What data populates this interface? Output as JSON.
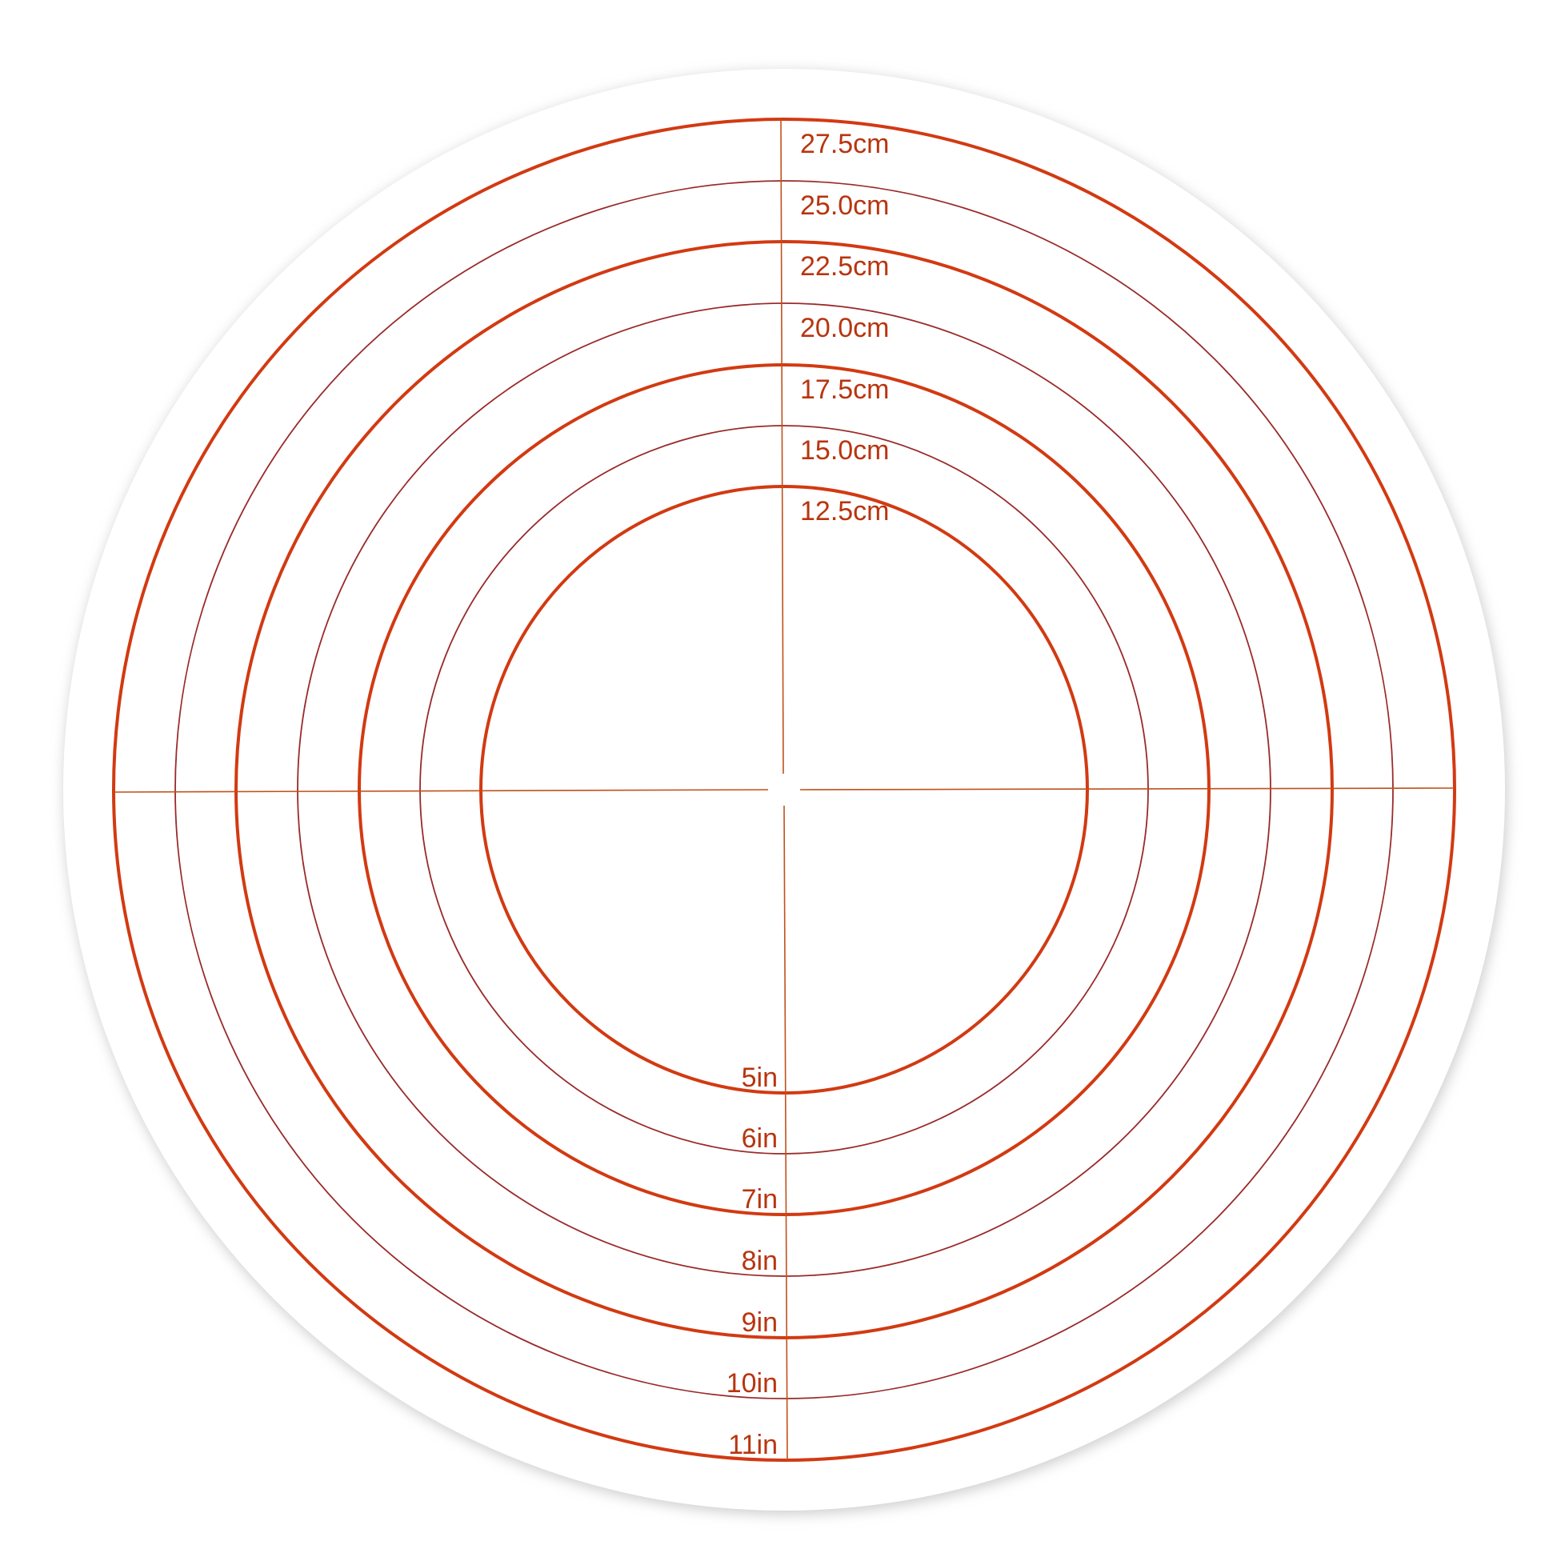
{
  "mat": {
    "colors": {
      "thick_ring": "#d23a12",
      "thin_ring": "#9a2a2a",
      "label": "#b8350f",
      "crosshair": "#c0501a",
      "mat": "#ffffff"
    },
    "cm_labels": [
      "27.5cm",
      "25.0cm",
      "22.5cm",
      "20.0cm",
      "17.5cm",
      "15.0cm",
      "12.5cm"
    ],
    "inch_labels": [
      "11in",
      "10in",
      "9in",
      "8in",
      "7in",
      "6in",
      "5in"
    ]
  }
}
